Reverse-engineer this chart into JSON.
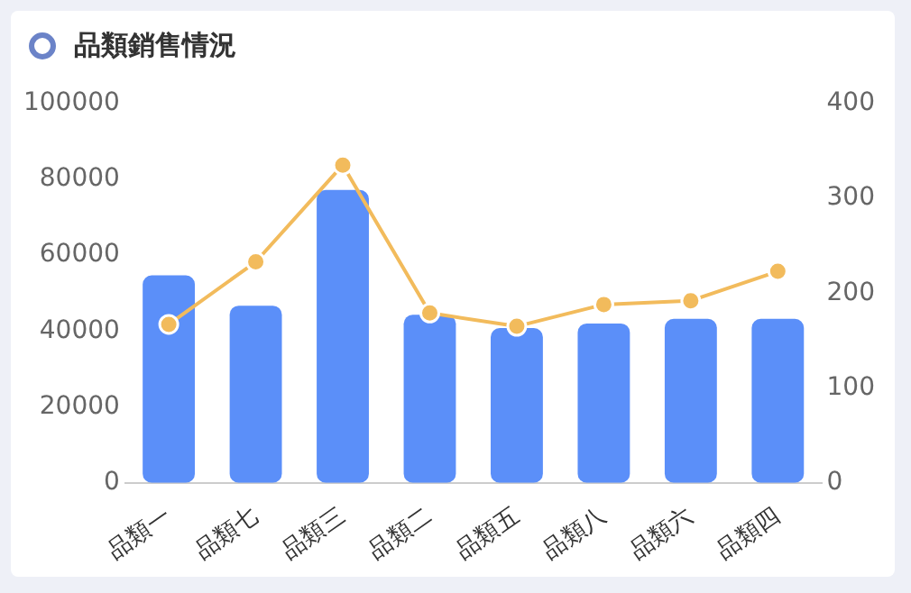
{
  "chart_data": {
    "type": "bar",
    "title": "品類銷售情況",
    "categories": [
      "品類一",
      "品類七",
      "品類三",
      "品類二",
      "品類五",
      "品類八",
      "品類六",
      "品類四"
    ],
    "series": [
      {
        "color": "#5b8ff9",
        "values": [
          54700,
          46700,
          77200,
          44300,
          40800,
          42000,
          43200,
          43200
        ]
      },
      {
        "type": "line",
        "color": "#f2bb5c",
        "axis": "y2",
        "values": [
          167,
          233,
          335,
          179,
          165,
          188,
          192,
          223
        ]
      }
    ],
    "ylim": [
      0,
      100000
    ],
    "yticks": [
      0,
      20000,
      40000,
      60000,
      80000,
      100000
    ],
    "y2lim": [
      0,
      400
    ],
    "y2ticks": [
      0,
      100,
      200,
      300,
      400
    ],
    "grid": false,
    "legend": false,
    "marker": "circle"
  }
}
